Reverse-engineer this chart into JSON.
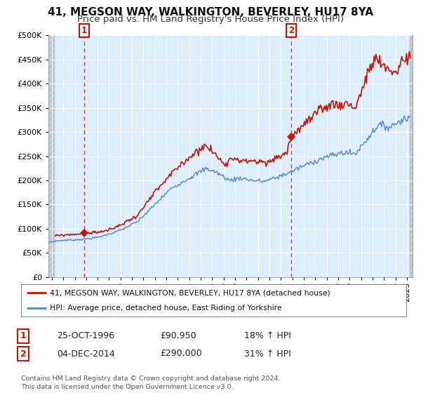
{
  "title": "41, MEGSON WAY, WALKINGTON, BEVERLEY, HU17 8YA",
  "subtitle": "Price paid vs. HM Land Registry's House Price Index (HPI)",
  "ylim": [
    0,
    500000
  ],
  "yticks": [
    0,
    50000,
    100000,
    150000,
    200000,
    250000,
    300000,
    350000,
    400000,
    450000,
    500000
  ],
  "xlim_start": 1993.7,
  "xlim_end": 2025.5,
  "hpi_color": "#5588cc",
  "price_color": "#cc1100",
  "marker_color": "#cc1100",
  "chart_bg": "#ddeeff",
  "hatch_color": "#c0cce0",
  "grid_color": "#ffffff",
  "transaction1_date": 1996.82,
  "transaction1_price": 90950,
  "transaction1_label": "1",
  "transaction2_date": 2014.92,
  "transaction2_price": 290000,
  "transaction2_label": "2",
  "legend_line1": "41, MEGSON WAY, WALKINGTON, BEVERLEY, HU17 8YA (detached house)",
  "legend_line2": "HPI: Average price, detached house, East Riding of Yorkshire",
  "table_row1": [
    "1",
    "25-OCT-1996",
    "£90,950",
    "18% ↑ HPI"
  ],
  "table_row2": [
    "2",
    "04-DEC-2014",
    "£290,000",
    "31% ↑ HPI"
  ],
  "footer": "Contains HM Land Registry data © Crown copyright and database right 2024.\nThis data is licensed under the Open Government Licence v3.0.",
  "title_fontsize": 11,
  "subtitle_fontsize": 9.5,
  "tick_fontsize": 8,
  "background_color": "#ffffff"
}
